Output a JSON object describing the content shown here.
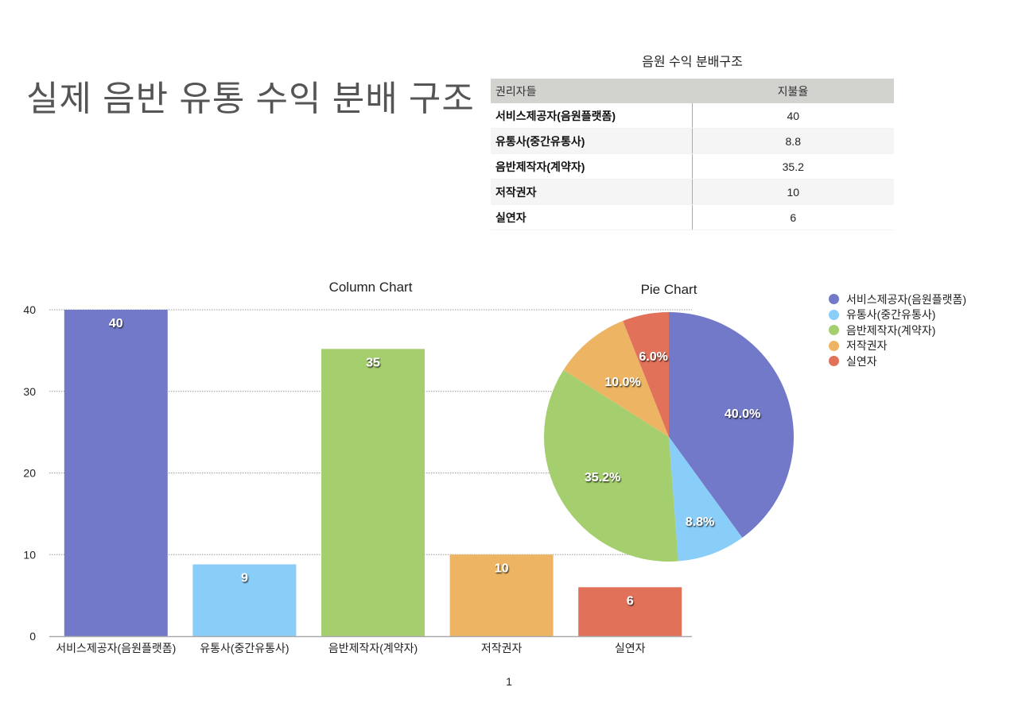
{
  "page": {
    "title": "실제 음반 유통 수익 분배 구조",
    "page_number": "1"
  },
  "table": {
    "title": "음원 수익 분배구조",
    "headers": [
      "권리자들",
      "지불율"
    ],
    "rows": [
      [
        "서비스제공자(음원플랫폼)",
        "40"
      ],
      [
        "유통사(중간유통사)",
        "8.8"
      ],
      [
        "음반제작자(계약자)",
        "35.2"
      ],
      [
        "저작권자",
        "10"
      ],
      [
        "실연자",
        "6"
      ]
    ]
  },
  "colors": {
    "series": [
      "#7279c8",
      "#89cdf9",
      "#a5cf6f",
      "#edb563",
      "#e27159"
    ],
    "grid": "#999999",
    "axis": "#aaaaaa"
  },
  "chart_data": [
    {
      "type": "bar",
      "title": "Column Chart",
      "categories": [
        "서비스제공자(음원플랫폼)",
        "유통사(중간유통사)",
        "음반제작자(계약자)",
        "저작권자",
        "실연자"
      ],
      "values": [
        40,
        8.8,
        35.2,
        10,
        6
      ],
      "data_labels": [
        "40",
        "9",
        "35",
        "10",
        "6"
      ],
      "xlabel": "",
      "ylabel": "",
      "ylim": [
        0,
        40
      ],
      "yticks": [
        0,
        10,
        20,
        30,
        40
      ],
      "grid": true,
      "legend": "none"
    },
    {
      "type": "pie",
      "title": "Pie Chart",
      "categories": [
        "서비스제공자(음원플랫폼)",
        "유통사(중간유통사)",
        "음반제작자(계약자)",
        "저작권자",
        "실연자"
      ],
      "values": [
        40,
        8.8,
        35.2,
        10,
        6
      ],
      "data_labels": [
        "40.0%",
        "8.8%",
        "35.2%",
        "10.0%",
        "6.0%"
      ],
      "legend_position": "right",
      "start_angle": "12 o'clock, clockwise"
    }
  ]
}
